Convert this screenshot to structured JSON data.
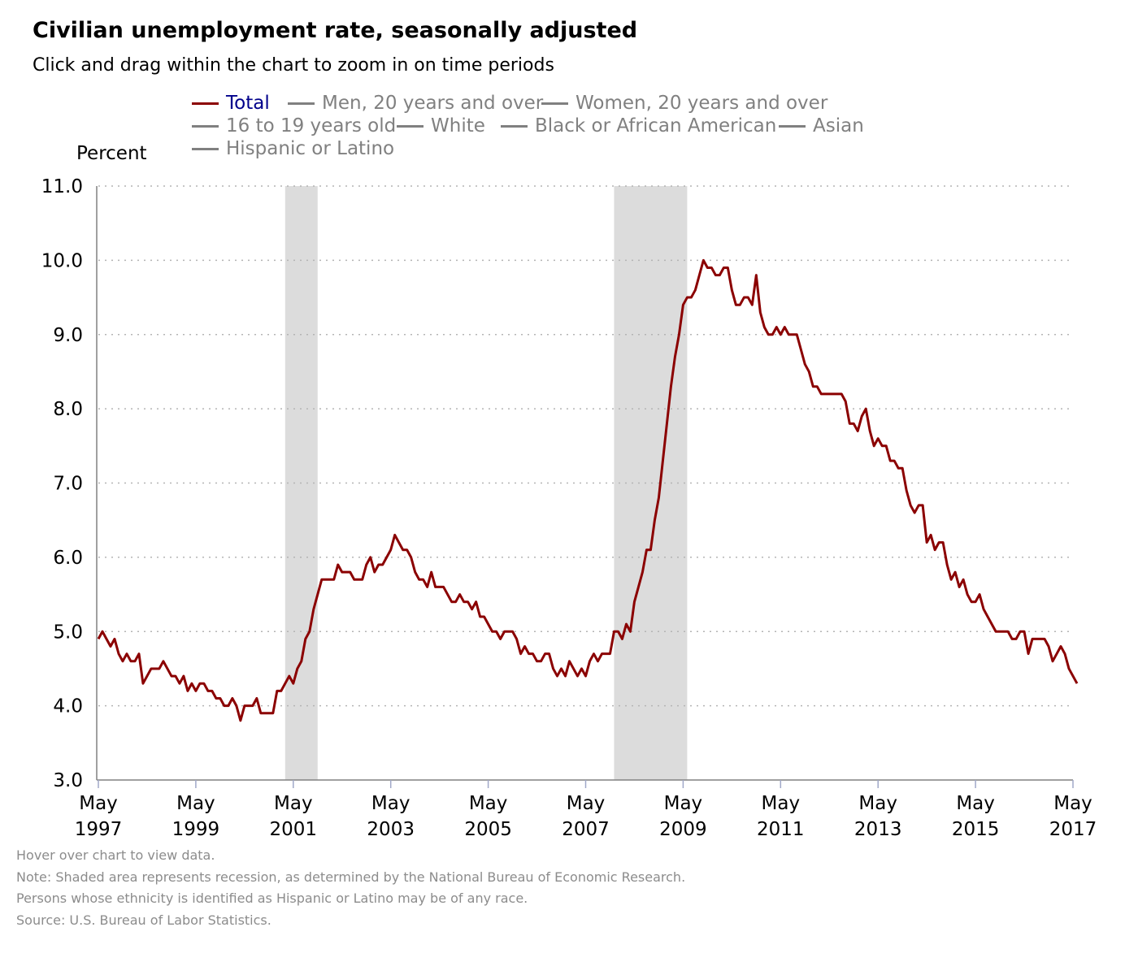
{
  "header": {
    "title": "Civilian unemployment rate, seasonally adjusted",
    "subtitle": "Click and drag within the chart to zoom in on time periods"
  },
  "legend": {
    "items": [
      {
        "label": "Total",
        "active": true
      },
      {
        "label": "Men, 20 years and over",
        "active": false
      },
      {
        "label": "Women, 20 years and over",
        "active": false
      },
      {
        "label": "16 to 19 years old",
        "active": false
      },
      {
        "label": "White",
        "active": false
      },
      {
        "label": "Black or African American",
        "active": false
      },
      {
        "label": "Asian",
        "active": false
      },
      {
        "label": "Hispanic or Latino",
        "active": false
      }
    ]
  },
  "footer": {
    "notes": [
      "Hover over chart to view data.",
      "Note: Shaded area represents recession, as determined by the National Bureau of Economic Research.",
      "Persons whose ethnicity is identified as Hispanic or Latino may be of any race.",
      "Source: U.S. Bureau of Labor Statistics."
    ]
  },
  "colors": {
    "total_line": "#8b0000",
    "inactive_series": "#808080",
    "active_legend_text": "#00008b",
    "recession_shade": "#dcdcdc",
    "grid": "#b4b4b4"
  },
  "chart_data": {
    "type": "line",
    "ylabel": "Percent",
    "ylim": [
      3.0,
      11.0
    ],
    "y_ticks": [
      "3.0",
      "4.0",
      "5.0",
      "6.0",
      "7.0",
      "8.0",
      "9.0",
      "10.0",
      "11.0"
    ],
    "xlim": [
      "1997-05",
      "2017-05"
    ],
    "x_ticks": [
      [
        "May",
        "1997"
      ],
      [
        "May",
        "1999"
      ],
      [
        "May",
        "2001"
      ],
      [
        "May",
        "2003"
      ],
      [
        "May",
        "2005"
      ],
      [
        "May",
        "2007"
      ],
      [
        "May",
        "2009"
      ],
      [
        "May",
        "2011"
      ],
      [
        "May",
        "2013"
      ],
      [
        "May",
        "2015"
      ],
      [
        "May",
        "2017"
      ]
    ],
    "grid": "horizontal dotted",
    "legend_position": "top",
    "recessions": [
      {
        "start": "2001-03",
        "end": "2001-11"
      },
      {
        "start": "2007-12",
        "end": "2009-06"
      }
    ],
    "series": [
      {
        "name": "Total",
        "start": "1997-05",
        "frequency": "monthly",
        "values": [
          4.9,
          5.0,
          4.9,
          4.8,
          4.9,
          4.7,
          4.6,
          4.7,
          4.6,
          4.6,
          4.7,
          4.3,
          4.4,
          4.5,
          4.5,
          4.5,
          4.6,
          4.5,
          4.4,
          4.4,
          4.3,
          4.4,
          4.2,
          4.3,
          4.2,
          4.3,
          4.3,
          4.2,
          4.2,
          4.1,
          4.1,
          4.0,
          4.0,
          4.1,
          4.0,
          3.8,
          4.0,
          4.0,
          4.0,
          4.1,
          3.9,
          3.9,
          3.9,
          3.9,
          4.2,
          4.2,
          4.3,
          4.4,
          4.3,
          4.5,
          4.6,
          4.9,
          5.0,
          5.3,
          5.5,
          5.7,
          5.7,
          5.7,
          5.7,
          5.9,
          5.8,
          5.8,
          5.8,
          5.7,
          5.7,
          5.7,
          5.9,
          6.0,
          5.8,
          5.9,
          5.9,
          6.0,
          6.1,
          6.3,
          6.2,
          6.1,
          6.1,
          6.0,
          5.8,
          5.7,
          5.7,
          5.6,
          5.8,
          5.6,
          5.6,
          5.6,
          5.5,
          5.4,
          5.4,
          5.5,
          5.4,
          5.4,
          5.3,
          5.4,
          5.2,
          5.2,
          5.1,
          5.0,
          5.0,
          4.9,
          5.0,
          5.0,
          5.0,
          4.9,
          4.7,
          4.8,
          4.7,
          4.7,
          4.6,
          4.6,
          4.7,
          4.7,
          4.5,
          4.4,
          4.5,
          4.4,
          4.6,
          4.5,
          4.4,
          4.5,
          4.4,
          4.6,
          4.7,
          4.6,
          4.7,
          4.7,
          4.7,
          5.0,
          5.0,
          4.9,
          5.1,
          5.0,
          5.4,
          5.6,
          5.8,
          6.1,
          6.1,
          6.5,
          6.8,
          7.3,
          7.8,
          8.3,
          8.7,
          9.0,
          9.4,
          9.5,
          9.5,
          9.6,
          9.8,
          10.0,
          9.9,
          9.9,
          9.8,
          9.8,
          9.9,
          9.9,
          9.6,
          9.4,
          9.4,
          9.5,
          9.5,
          9.4,
          9.8,
          9.3,
          9.1,
          9.0,
          9.0,
          9.1,
          9.0,
          9.1,
          9.0,
          9.0,
          9.0,
          8.8,
          8.6,
          8.5,
          8.3,
          8.3,
          8.2,
          8.2,
          8.2,
          8.2,
          8.2,
          8.2,
          8.1,
          7.8,
          7.8,
          7.7,
          7.9,
          8.0,
          7.7,
          7.5,
          7.6,
          7.5,
          7.5,
          7.3,
          7.3,
          7.2,
          7.2,
          6.9,
          6.7,
          6.6,
          6.7,
          6.7,
          6.2,
          6.3,
          6.1,
          6.2,
          6.2,
          5.9,
          5.7,
          5.8,
          5.6,
          5.7,
          5.5,
          5.4,
          5.4,
          5.5,
          5.3,
          5.2,
          5.1,
          5.0,
          5.0,
          5.0,
          5.0,
          4.9,
          4.9,
          5.0,
          5.0,
          4.7,
          4.9,
          4.9,
          4.9,
          4.9,
          4.8,
          4.6,
          4.7,
          4.8,
          4.7,
          4.5,
          4.4,
          4.3
        ]
      }
    ]
  }
}
